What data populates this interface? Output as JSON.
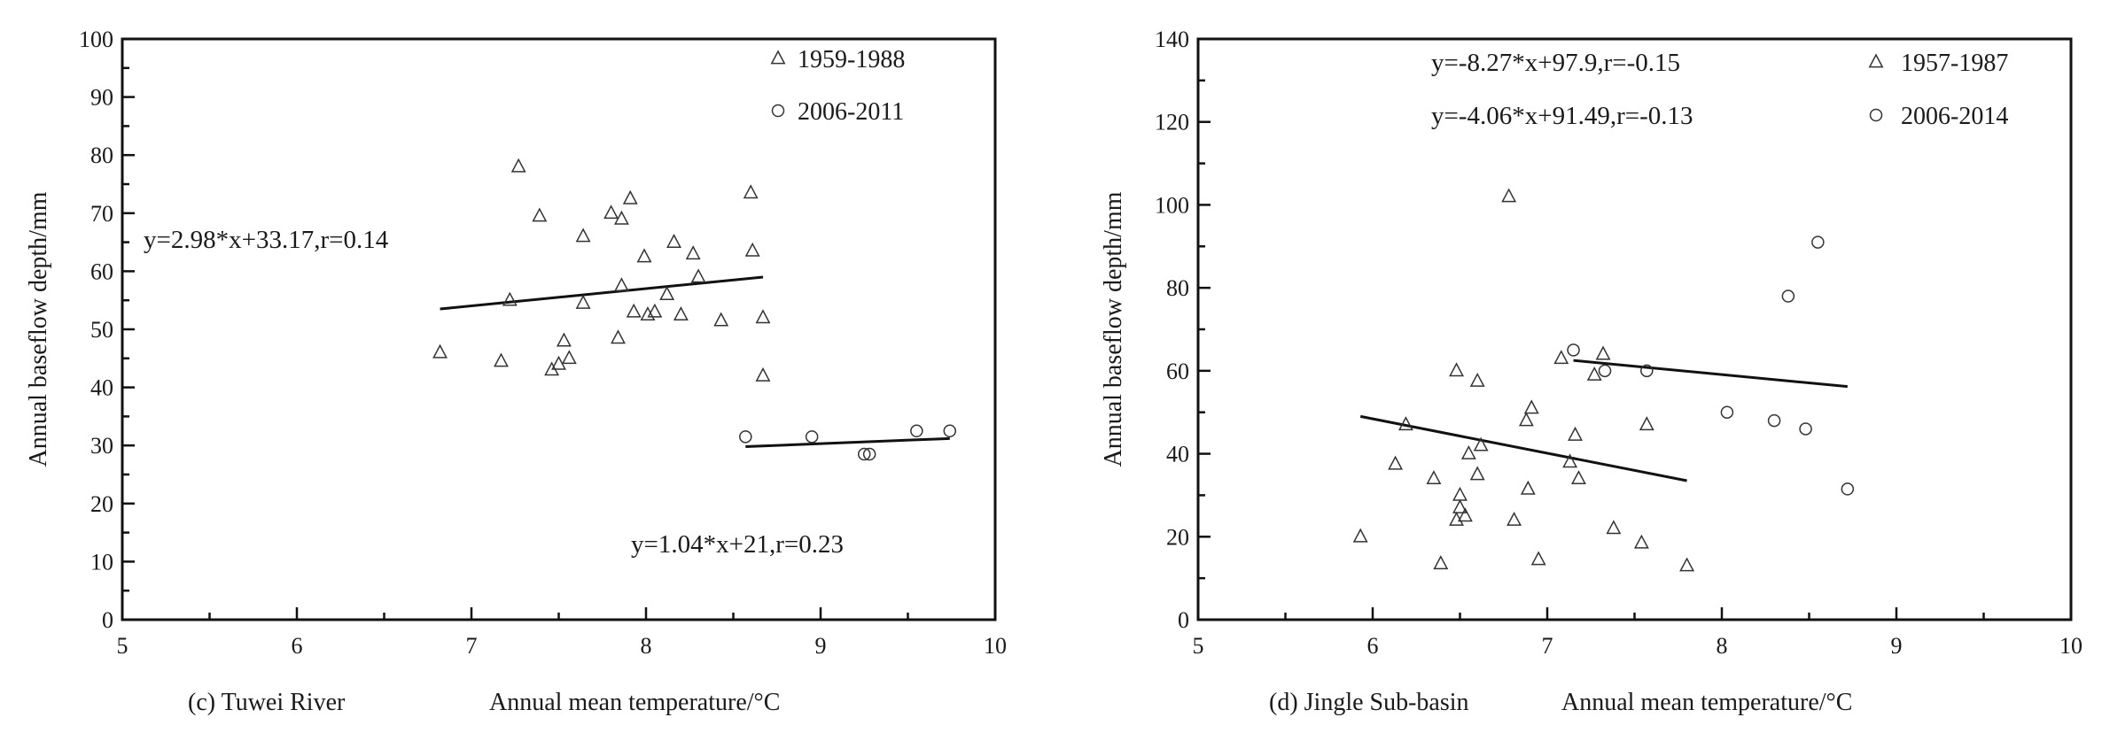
{
  "chart_data": [
    {
      "type": "scatter",
      "panel_label": "(c) Tuwei River",
      "xlabel": "Annual mean temperature/°C",
      "ylabel": "Annual baseflow depth/mm",
      "xlim": [
        5,
        10
      ],
      "ylim": [
        0,
        100
      ],
      "xticks": [
        "5",
        "6",
        "7",
        "8",
        "9",
        "10"
      ],
      "yticks": [
        "0",
        "10",
        "20",
        "30",
        "40",
        "50",
        "60",
        "70",
        "80",
        "90",
        "100"
      ],
      "legend_position": "top-right",
      "series": [
        {
          "name": "1959-1988",
          "marker": "triangle",
          "points": [
            [
              6.82,
              46
            ],
            [
              7.17,
              44.5
            ],
            [
              7.22,
              55
            ],
            [
              7.27,
              78
            ],
            [
              7.39,
              69.5
            ],
            [
              7.46,
              43
            ],
            [
              7.5,
              44
            ],
            [
              7.53,
              48
            ],
            [
              7.56,
              45
            ],
            [
              7.64,
              66
            ],
            [
              7.64,
              54.5
            ],
            [
              7.8,
              70
            ],
            [
              7.84,
              48.5
            ],
            [
              7.86,
              57.5
            ],
            [
              7.86,
              69
            ],
            [
              7.91,
              72.5
            ],
            [
              7.93,
              53
            ],
            [
              7.99,
              62.5
            ],
            [
              8.01,
              52.5
            ],
            [
              8.05,
              53
            ],
            [
              8.12,
              56
            ],
            [
              8.16,
              65
            ],
            [
              8.2,
              52.5
            ],
            [
              8.27,
              63
            ],
            [
              8.3,
              59
            ],
            [
              8.43,
              51.5
            ],
            [
              8.6,
              73.5
            ],
            [
              8.61,
              63.5
            ],
            [
              8.67,
              52
            ],
            [
              8.67,
              42
            ]
          ],
          "fit": {
            "x": [
              6.82,
              8.67
            ],
            "y": [
              53.5,
              59.0
            ]
          },
          "equation": "y=2.98*x+33.17,r=0.14"
        },
        {
          "name": "2006-2011",
          "marker": "circle",
          "points": [
            [
              8.57,
              31.5
            ],
            [
              8.95,
              31.5
            ],
            [
              9.25,
              28.5
            ],
            [
              9.28,
              28.5
            ],
            [
              9.55,
              32.5
            ],
            [
              9.74,
              32.5
            ]
          ],
          "fit": {
            "x": [
              8.57,
              9.74
            ],
            "y": [
              29.8,
              31.2
            ]
          },
          "equation": "y=1.04*x+21,r=0.23"
        }
      ]
    },
    {
      "type": "scatter",
      "panel_label": "(d) Jingle Sub-basin",
      "xlabel": "Annual mean temperature/°C",
      "ylabel": "Annual baseflow depth/mm",
      "xlim": [
        5,
        10
      ],
      "ylim": [
        0,
        140
      ],
      "xticks": [
        "5",
        "6",
        "7",
        "8",
        "9",
        "10"
      ],
      "yticks": [
        "0",
        "20",
        "40",
        "60",
        "80",
        "100",
        "120",
        "140"
      ],
      "legend_position": "top-right",
      "series": [
        {
          "name": "1957-1987",
          "marker": "triangle",
          "points": [
            [
              5.93,
              20
            ],
            [
              6.13,
              37.5
            ],
            [
              6.19,
              47
            ],
            [
              6.35,
              34
            ],
            [
              6.39,
              13.5
            ],
            [
              6.48,
              24
            ],
            [
              6.48,
              60
            ],
            [
              6.5,
              30
            ],
            [
              6.5,
              27
            ],
            [
              6.53,
              25
            ],
            [
              6.55,
              40
            ],
            [
              6.6,
              35
            ],
            [
              6.6,
              57.5
            ],
            [
              6.62,
              42
            ],
            [
              6.78,
              102
            ],
            [
              6.81,
              24
            ],
            [
              6.88,
              48
            ],
            [
              6.89,
              31.5
            ],
            [
              6.91,
              51
            ],
            [
              6.95,
              14.5
            ],
            [
              7.08,
              63
            ],
            [
              7.13,
              38
            ],
            [
              7.16,
              44.5
            ],
            [
              7.18,
              34
            ],
            [
              7.27,
              59
            ],
            [
              7.32,
              64
            ],
            [
              7.38,
              22
            ],
            [
              7.54,
              18.5
            ],
            [
              7.57,
              47
            ],
            [
              7.8,
              13
            ]
          ],
          "fit": {
            "x": [
              5.93,
              7.8
            ],
            "y": [
              49.0,
              33.5
            ]
          },
          "equation": "y=-8.27*x+97.9,r=-0.15"
        },
        {
          "name": "2006-2014",
          "marker": "circle",
          "points": [
            [
              7.15,
              65
            ],
            [
              7.33,
              60
            ],
            [
              7.57,
              60
            ],
            [
              8.03,
              50
            ],
            [
              8.3,
              48
            ],
            [
              8.38,
              78
            ],
            [
              8.48,
              46
            ],
            [
              8.55,
              91
            ],
            [
              8.72,
              31.5
            ]
          ],
          "fit": {
            "x": [
              7.15,
              8.72
            ],
            "y": [
              62.5,
              56.2
            ]
          },
          "equation": "y=-4.06*x+91.49,r=-0.13"
        }
      ]
    }
  ]
}
